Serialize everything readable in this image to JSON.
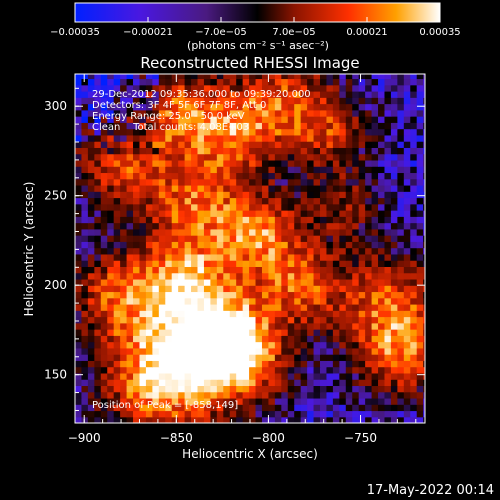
{
  "chart_data": {
    "type": "heatmap",
    "title": "Reconstructed RHESSI Image",
    "xlabel": "Heliocentric X (arcsec)",
    "ylabel": "Heliocentric Y (arcsec)",
    "xlim": [
      -905,
      -715
    ],
    "ylim": [
      123,
      318
    ],
    "x_ticks": [
      -900,
      -850,
      -800,
      -750
    ],
    "x_tick_labels": [
      "−900",
      "−850",
      "−800",
      "−750"
    ],
    "y_ticks": [
      150,
      200,
      250,
      300
    ],
    "y_tick_labels": [
      "150",
      "200",
      "250",
      "300"
    ],
    "colorbar": {
      "min": -0.00035,
      "max": 0.00035,
      "ticks": [
        -0.00035,
        -0.00021,
        -7e-05,
        7e-05,
        0.00021,
        0.00035
      ],
      "tick_labels": [
        "−0.00035",
        "−0.00021",
        "−7.0e−05",
        "7.0e−05",
        "0.00021",
        "0.00035"
      ],
      "units": "(photons cm⁻² s⁻¹ asec⁻²)",
      "colors": [
        "#0020ff",
        "#5a10c8",
        "#3a1a60",
        "#000000",
        "#8a1400",
        "#ff3000",
        "#ffa000",
        "#ffffff"
      ]
    },
    "annotations": [
      "29-Dec-2012 09:35:36.000 to 09:39:20.000",
      "Detectors: 3F 4F 5F 6F 7F 8F, Att 0",
      "Energy Range: 25.0 - 50.0 keV",
      "Clean    Total counts: 4.08E+03",
      "Position of Peak = [-858,149]"
    ],
    "peak": {
      "x": -858,
      "y": 149
    },
    "grid": false,
    "legend": "none"
  },
  "footer": {
    "timestamp": "17-May-2022 00:14"
  }
}
